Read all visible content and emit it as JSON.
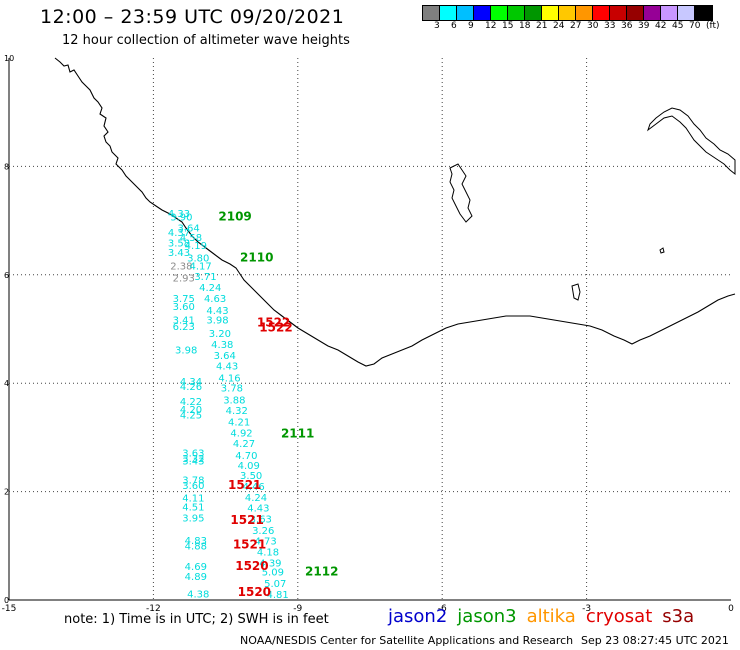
{
  "header": {
    "title": "12:00 – 23:59 UTC 09/20/2021",
    "subtitle": "12 hour collection of altimeter wave heights"
  },
  "colorbar": {
    "colors": [
      "#7f7f7f",
      "#00ffff",
      "#00bfff",
      "#0000ff",
      "#00ff00",
      "#00c800",
      "#009600",
      "#ffff00",
      "#ffc800",
      "#ff9600",
      "#ff0000",
      "#c80000",
      "#960000",
      "#960096",
      "#c896ff",
      "#c8c8ff",
      "#000000"
    ],
    "labels": [
      "3",
      "6",
      "9",
      "12",
      "15",
      "18",
      "21",
      "24",
      "27",
      "30",
      "33",
      "36",
      "39",
      "42",
      "45",
      "70",
      "(ft)"
    ]
  },
  "axes": {
    "x_ticks": [
      "-15",
      "-12",
      "-9",
      "-6",
      "-3",
      "0"
    ],
    "y_ticks": [
      "0",
      "2",
      "4",
      "6",
      "8",
      "10"
    ],
    "xlim": [
      -15,
      0
    ],
    "ylim": [
      0,
      10
    ]
  },
  "passes": [
    {
      "label": "2109",
      "color": "#009600",
      "lon": -10.65,
      "lat": 7.0
    },
    {
      "label": "2110",
      "color": "#009600",
      "lon": -10.2,
      "lat": 6.25
    },
    {
      "label": "1522",
      "color": "#e00000",
      "lon": -9.85,
      "lat": 5.05
    },
    {
      "label": "1522",
      "color": "#e00000",
      "lon": -9.8,
      "lat": 4.95
    },
    {
      "label": "2111",
      "color": "#009600",
      "lon": -9.35,
      "lat": 3.0
    },
    {
      "label": "1521",
      "color": "#e00000",
      "lon": -10.45,
      "lat": 2.05
    },
    {
      "label": "1521",
      "color": "#e00000",
      "lon": -10.4,
      "lat": 1.4
    },
    {
      "label": "1521",
      "color": "#e00000",
      "lon": -10.35,
      "lat": 0.95
    },
    {
      "label": "1520",
      "color": "#e00000",
      "lon": -10.3,
      "lat": 0.55
    },
    {
      "label": "2112",
      "color": "#009600",
      "lon": -8.85,
      "lat": 0.45
    },
    {
      "label": "1520",
      "color": "#e00000",
      "lon": -10.25,
      "lat": 0.07
    }
  ],
  "observations": [
    {
      "v": "4.33",
      "lon": -11.7,
      "lat": 7.07,
      "c": "#00dcdc"
    },
    {
      "v": "3.90",
      "lon": -11.65,
      "lat": 7.0,
      "c": "#00dcdc"
    },
    {
      "v": "3.64",
      "lon": -11.5,
      "lat": 6.8,
      "c": "#00dcdc"
    },
    {
      "v": "4.37",
      "lon": -11.7,
      "lat": 6.72,
      "c": "#00dcdc"
    },
    {
      "v": "4.58",
      "lon": -11.45,
      "lat": 6.62,
      "c": "#00dcdc"
    },
    {
      "v": "3.58",
      "lon": -11.7,
      "lat": 6.52,
      "c": "#00dcdc"
    },
    {
      "v": "4.19",
      "lon": -11.35,
      "lat": 6.48,
      "c": "#00dcdc"
    },
    {
      "v": "3.43",
      "lon": -11.7,
      "lat": 6.35,
      "c": "#00dcdc"
    },
    {
      "v": "3.80",
      "lon": -11.3,
      "lat": 6.25,
      "c": "#00dcdc"
    },
    {
      "v": "2.38",
      "lon": -11.65,
      "lat": 6.1,
      "c": "#8c8c8c"
    },
    {
      "v": "4.17",
      "lon": -11.25,
      "lat": 6.1,
      "c": "#00dcdc"
    },
    {
      "v": "2.93",
      "lon": -11.6,
      "lat": 5.88,
      "c": "#8c8c8c"
    },
    {
      "v": "3.71",
      "lon": -11.15,
      "lat": 5.9,
      "c": "#00dcdc"
    },
    {
      "v": "4.24",
      "lon": -11.05,
      "lat": 5.7,
      "c": "#00dcdc"
    },
    {
      "v": "3.75",
      "lon": -11.6,
      "lat": 5.5,
      "c": "#00dcdc"
    },
    {
      "v": "4.63",
      "lon": -10.95,
      "lat": 5.5,
      "c": "#00dcdc"
    },
    {
      "v": "3.60",
      "lon": -11.6,
      "lat": 5.35,
      "c": "#00dcdc"
    },
    {
      "v": "4.43",
      "lon": -10.9,
      "lat": 5.28,
      "c": "#00dcdc"
    },
    {
      "v": "3.41",
      "lon": -11.6,
      "lat": 5.1,
      "c": "#00dcdc"
    },
    {
      "v": "3.98",
      "lon": -10.9,
      "lat": 5.1,
      "c": "#00dcdc"
    },
    {
      "v": "6.23",
      "lon": -11.6,
      "lat": 4.98,
      "c": "#00dcdc"
    },
    {
      "v": "3.20",
      "lon": -10.85,
      "lat": 4.85,
      "c": "#00dcdc"
    },
    {
      "v": "4.38",
      "lon": -10.8,
      "lat": 4.65,
      "c": "#00dcdc"
    },
    {
      "v": "3.98",
      "lon": -11.55,
      "lat": 4.55,
      "c": "#00dcdc"
    },
    {
      "v": "3.64",
      "lon": -10.75,
      "lat": 4.45,
      "c": "#00dcdc"
    },
    {
      "v": "4.43",
      "lon": -10.7,
      "lat": 4.25,
      "c": "#00dcdc"
    },
    {
      "v": "4.34",
      "lon": -11.45,
      "lat": 3.97,
      "c": "#00dcdc"
    },
    {
      "v": "4.16",
      "lon": -10.65,
      "lat": 4.03,
      "c": "#00dcdc"
    },
    {
      "v": "4.26",
      "lon": -11.45,
      "lat": 3.87,
      "c": "#00dcdc"
    },
    {
      "v": "3.78",
      "lon": -10.6,
      "lat": 3.85,
      "c": "#00dcdc"
    },
    {
      "v": "4.22",
      "lon": -11.45,
      "lat": 3.6,
      "c": "#00dcdc"
    },
    {
      "v": "3.88",
      "lon": -10.55,
      "lat": 3.63,
      "c": "#00dcdc"
    },
    {
      "v": "4.20",
      "lon": -11.45,
      "lat": 3.45,
      "c": "#00dcdc"
    },
    {
      "v": "4.32",
      "lon": -10.5,
      "lat": 3.43,
      "c": "#00dcdc"
    },
    {
      "v": "4.25",
      "lon": -11.45,
      "lat": 3.35,
      "c": "#00dcdc"
    },
    {
      "v": "4.21",
      "lon": -10.45,
      "lat": 3.22,
      "c": "#00dcdc"
    },
    {
      "v": "4.92",
      "lon": -10.4,
      "lat": 3.02,
      "c": "#00dcdc"
    },
    {
      "v": "4.27",
      "lon": -10.35,
      "lat": 2.82,
      "c": "#00dcdc"
    },
    {
      "v": "3.63",
      "lon": -11.4,
      "lat": 2.65,
      "c": "#00dcdc"
    },
    {
      "v": "4.70",
      "lon": -10.3,
      "lat": 2.6,
      "c": "#00dcdc"
    },
    {
      "v": "3.32",
      "lon": -11.4,
      "lat": 2.55,
      "c": "#00dcdc"
    },
    {
      "v": "3.43",
      "lon": -11.4,
      "lat": 2.5,
      "c": "#00dcdc"
    },
    {
      "v": "4.09",
      "lon": -10.25,
      "lat": 2.42,
      "c": "#00dcdc"
    },
    {
      "v": "3.78",
      "lon": -11.4,
      "lat": 2.15,
      "c": "#00dcdc"
    },
    {
      "v": "3.50",
      "lon": -10.2,
      "lat": 2.23,
      "c": "#00dcdc"
    },
    {
      "v": "3.60",
      "lon": -11.4,
      "lat": 2.05,
      "c": "#00dcdc"
    },
    {
      "v": "4.46",
      "lon": -10.15,
      "lat": 2.03,
      "c": "#00dcdc"
    },
    {
      "v": "4.11",
      "lon": -11.4,
      "lat": 1.82,
      "c": "#00dcdc"
    },
    {
      "v": "4.24",
      "lon": -10.1,
      "lat": 1.83,
      "c": "#00dcdc"
    },
    {
      "v": "4.51",
      "lon": -11.4,
      "lat": 1.65,
      "c": "#00dcdc"
    },
    {
      "v": "4.43",
      "lon": -10.05,
      "lat": 1.63,
      "c": "#00dcdc"
    },
    {
      "v": "3.95",
      "lon": -11.4,
      "lat": 1.45,
      "c": "#00dcdc"
    },
    {
      "v": "3.63",
      "lon": -10.0,
      "lat": 1.43,
      "c": "#00dcdc"
    },
    {
      "v": "3.26",
      "lon": -9.95,
      "lat": 1.22,
      "c": "#00dcdc"
    },
    {
      "v": "4.83",
      "lon": -11.35,
      "lat": 1.03,
      "c": "#00dcdc"
    },
    {
      "v": "4.73",
      "lon": -9.9,
      "lat": 1.02,
      "c": "#00dcdc"
    },
    {
      "v": "4.88",
      "lon": -11.35,
      "lat": 0.93,
      "c": "#00dcdc"
    },
    {
      "v": "4.18",
      "lon": -9.85,
      "lat": 0.82,
      "c": "#00dcdc"
    },
    {
      "v": "4.69",
      "lon": -11.35,
      "lat": 0.55,
      "c": "#00dcdc"
    },
    {
      "v": "4.39",
      "lon": -9.8,
      "lat": 0.62,
      "c": "#00dcdc"
    },
    {
      "v": "4.89",
      "lon": -11.35,
      "lat": 0.37,
      "c": "#00dcdc"
    },
    {
      "v": "5.09",
      "lon": -9.75,
      "lat": 0.45,
      "c": "#00dcdc"
    },
    {
      "v": "5.07",
      "lon": -9.7,
      "lat": 0.24,
      "c": "#00dcdc"
    },
    {
      "v": "4.38",
      "lon": -11.3,
      "lat": 0.05,
      "c": "#00dcdc"
    },
    {
      "v": "4.81",
      "lon": -9.65,
      "lat": 0.04,
      "c": "#00dcdc"
    }
  ],
  "footer": {
    "note": "note: 1) Time is in UTC; 2) SWH is in feet",
    "legend": [
      {
        "name": "jason2",
        "color": "#0000cc"
      },
      {
        "name": "jason3",
        "color": "#009600"
      },
      {
        "name": "altika",
        "color": "#ff9600"
      },
      {
        "name": "cryosat",
        "color": "#e00000"
      },
      {
        "name": "s3a",
        "color": "#960000"
      }
    ],
    "credit": "NOAA/NESDIS Center for Satellite Applications and Research",
    "timestamp": "Sep 23 08:27:45 UTC 2021"
  }
}
